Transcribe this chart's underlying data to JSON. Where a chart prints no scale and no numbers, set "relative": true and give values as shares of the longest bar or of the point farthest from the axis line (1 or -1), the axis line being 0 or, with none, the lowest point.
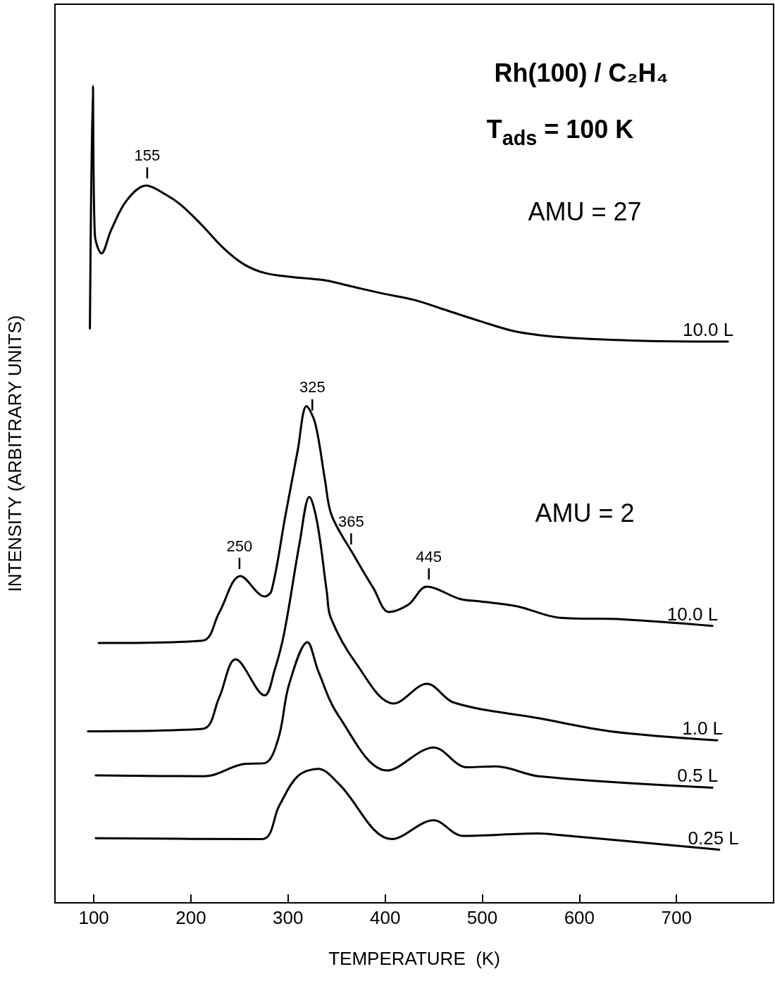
{
  "chart_data": {
    "type": "line",
    "title": "Rh(100) / C₂H₄",
    "subtitle": "T$_{ads}$ = 100 K",
    "xlabel": "TEMPERATURE  (K)",
    "ylabel": "INTENSITY (ARBITRARY UNITS)",
    "relative": true,
    "xlim": [
      60,
      800
    ],
    "xticks": [
      100,
      200,
      300,
      400,
      500,
      600,
      700
    ],
    "grid": false,
    "legend": false,
    "marker": "none",
    "line_style": "solid",
    "annotations": [
      "AMU = 27",
      "AMU = 2",
      {
        "text": "155",
        "x": 155,
        "y": 0.878
      },
      {
        "text": "250",
        "x": 250,
        "y": 0.4
      },
      {
        "text": "325",
        "x": 325,
        "y": 0.594
      },
      {
        "text": "365",
        "x": 365,
        "y": 0.43
      },
      {
        "text": "445",
        "x": 445,
        "y": 0.387
      }
    ],
    "series": [
      {
        "name": "10.0 L",
        "color": "#000000",
        "x": [
          96,
          99,
          101,
          108,
          118,
          134,
          154,
          174,
          190,
          211,
          233,
          254,
          276,
          305,
          338,
          364,
          397,
          430,
          464,
          498,
          532,
          566,
          601,
          666,
          753
        ],
        "values": [
          0.703,
          1.0,
          0.819,
          0.795,
          0.824,
          0.86,
          0.878,
          0.867,
          0.854,
          0.83,
          0.802,
          0.782,
          0.771,
          0.766,
          0.762,
          0.755,
          0.746,
          0.738,
          0.725,
          0.712,
          0.7,
          0.694,
          0.691,
          0.688,
          0.687
        ]
      },
      {
        "name": "10.0 L",
        "color": "#000000",
        "x": [
          105,
          212,
          229,
          251,
          276,
          283,
          297,
          310,
          319,
          328,
          338,
          345,
          368,
          388,
          404,
          424,
          443,
          477,
          498,
          536,
          580,
          645,
          737
        ],
        "values": [
          0.318,
          0.321,
          0.355,
          0.4,
          0.375,
          0.382,
          0.472,
          0.554,
          0.608,
          0.587,
          0.518,
          0.474,
          0.425,
          0.385,
          0.356,
          0.365,
          0.387,
          0.372,
          0.369,
          0.363,
          0.349,
          0.347,
          0.339
        ]
      },
      {
        "name": "1.0 L",
        "color": "#000000",
        "x": [
          94,
          212,
          229,
          246,
          276,
          286,
          296,
          312,
          322,
          330,
          340,
          344,
          369,
          409,
          443,
          471,
          558,
          632,
          742
        ],
        "values": [
          0.21,
          0.213,
          0.251,
          0.298,
          0.254,
          0.284,
          0.33,
          0.441,
          0.497,
          0.466,
          0.38,
          0.349,
          0.295,
          0.244,
          0.268,
          0.245,
          0.226,
          0.21,
          0.199
        ]
      },
      {
        "name": "0.5 L",
        "color": "#000000",
        "x": [
          102,
          214,
          255,
          276,
          290,
          301,
          320,
          331,
          352,
          402,
          450,
          484,
          514,
          558,
          737
        ],
        "values": [
          0.156,
          0.155,
          0.17,
          0.171,
          0.201,
          0.267,
          0.319,
          0.284,
          0.229,
          0.162,
          0.19,
          0.166,
          0.167,
          0.155,
          0.141
        ]
      },
      {
        "name": "0.25 L",
        "color": "#000000",
        "x": [
          102,
          273,
          291,
          310,
          331,
          352,
          407,
          450,
          480,
          558,
          580,
          744
        ],
        "values": [
          0.079,
          0.078,
          0.119,
          0.155,
          0.164,
          0.146,
          0.078,
          0.101,
          0.082,
          0.085,
          0.083,
          0.065
        ]
      }
    ]
  }
}
